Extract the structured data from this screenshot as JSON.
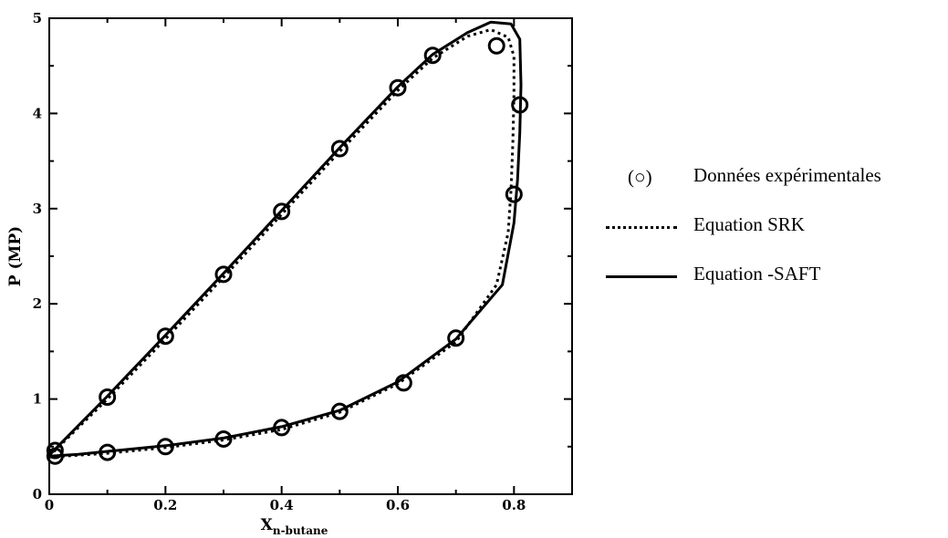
{
  "chart_data": {
    "type": "scatter",
    "title": "",
    "xlabel": "X",
    "xlabel_subscript": "n-butane",
    "ylabel": "P (MP)",
    "xlim": [
      0,
      0.9
    ],
    "ylim": [
      0,
      5
    ],
    "xticks": [
      0,
      0.2,
      0.4,
      0.6,
      0.8
    ],
    "xtick_labels": [
      "0",
      "0.2",
      "0.4",
      "0.6",
      "0.8"
    ],
    "yticks": [
      0,
      1,
      2,
      3,
      4,
      5
    ],
    "ytick_labels": [
      "0",
      "1",
      "2",
      "3",
      "4",
      "5"
    ],
    "grid": false,
    "legend_position": "right, outside plot",
    "series": [
      {
        "name": "Données expérimentales",
        "symbol": "(○)",
        "kind": "markers",
        "x": [
          0.01,
          0.1,
          0.2,
          0.3,
          0.4,
          0.5,
          0.6,
          0.66,
          0.77,
          0.81,
          0.8,
          0.7,
          0.61,
          0.5,
          0.4,
          0.3,
          0.2,
          0.1,
          0.01
        ],
        "y": [
          0.46,
          1.02,
          1.66,
          2.31,
          2.97,
          3.63,
          4.27,
          4.61,
          4.71,
          4.09,
          3.15,
          1.64,
          1.17,
          0.87,
          0.7,
          0.58,
          0.5,
          0.44,
          0.4
        ]
      },
      {
        "name": "Equation SRK",
        "kind": "dotted-line",
        "x": [
          0.0,
          0.05,
          0.1,
          0.2,
          0.3,
          0.4,
          0.5,
          0.6,
          0.66,
          0.72,
          0.76,
          0.79,
          0.8,
          0.8,
          0.798,
          0.795,
          0.79,
          0.77,
          0.7,
          0.6,
          0.5,
          0.4,
          0.3,
          0.2,
          0.1,
          0.05,
          0.0
        ],
        "y": [
          0.4,
          0.7,
          1.0,
          1.63,
          2.28,
          2.94,
          3.6,
          4.24,
          4.58,
          4.81,
          4.88,
          4.8,
          4.6,
          4.2,
          3.7,
          3.2,
          2.75,
          2.2,
          1.6,
          1.16,
          0.86,
          0.68,
          0.57,
          0.49,
          0.43,
          0.41,
          0.39
        ]
      },
      {
        "name": "Equation -SAFT",
        "kind": "solid-line",
        "x": [
          0.0,
          0.05,
          0.1,
          0.2,
          0.3,
          0.4,
          0.5,
          0.6,
          0.66,
          0.72,
          0.76,
          0.795,
          0.81,
          0.812,
          0.81,
          0.806,
          0.8,
          0.78,
          0.7,
          0.6,
          0.5,
          0.4,
          0.3,
          0.2,
          0.1,
          0.05,
          0.0
        ],
        "y": [
          0.41,
          0.72,
          1.03,
          1.67,
          2.32,
          2.98,
          3.64,
          4.28,
          4.62,
          4.85,
          4.96,
          4.94,
          4.78,
          4.3,
          3.8,
          3.3,
          2.85,
          2.2,
          1.63,
          1.18,
          0.88,
          0.71,
          0.59,
          0.51,
          0.45,
          0.42,
          0.4
        ]
      }
    ]
  },
  "legend": {
    "items": [
      {
        "symbol": "(○)",
        "text": "Données expérimentales"
      },
      {
        "text": "Equation SRK"
      },
      {
        "text": "Equation -SAFT"
      }
    ]
  }
}
